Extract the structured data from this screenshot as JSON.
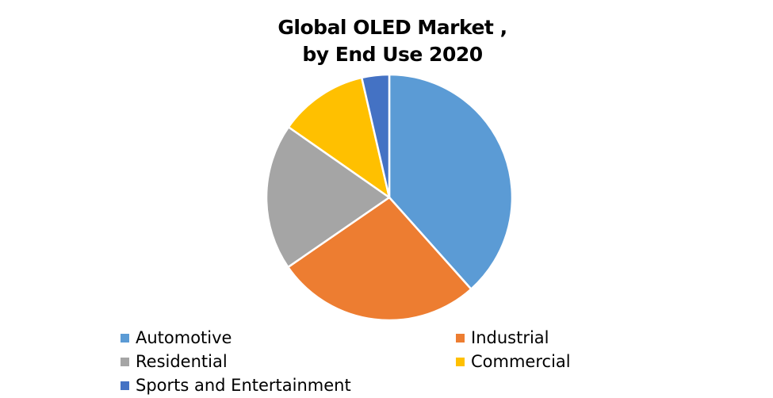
{
  "chart_data": {
    "type": "pie",
    "title_line1": "Global OLED Market ,",
    "title_line2": "by End Use 2020",
    "categories": [
      "Automotive",
      "Industrial",
      "Residential",
      "Commercial",
      "Sports and Entertainment"
    ],
    "values": [
      38.4,
      27.0,
      19.3,
      11.7,
      3.6
    ],
    "colors": [
      "#5B9BD5",
      "#ED7D31",
      "#A5A5A5",
      "#FFC000",
      "#4472C4"
    ],
    "legend_position": "bottom"
  }
}
